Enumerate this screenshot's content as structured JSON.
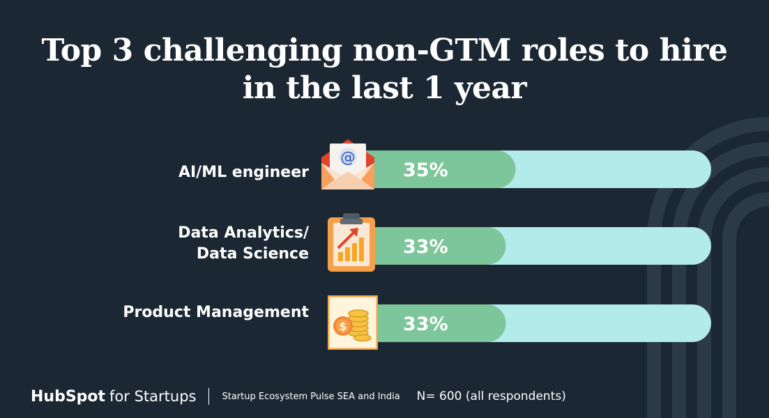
{
  "title": {
    "line1": "Top 3 challenging non-GTM roles to hire",
    "line2": "in the last 1 year"
  },
  "chart_data": {
    "type": "bar",
    "orientation": "horizontal",
    "title": "Top 3 challenging non-GTM roles to hire in the last 1 year",
    "categories": [
      "AI/ML engineer",
      "Data Analytics/ Data Science",
      "Product Management"
    ],
    "category_lines": [
      [
        "AI/ML engineer"
      ],
      [
        "Data Analytics/",
        "Data Science"
      ],
      [
        "Product Management"
      ]
    ],
    "values": [
      35,
      33,
      33
    ],
    "value_labels": [
      "35%",
      "33%",
      "33%"
    ],
    "unit": "%",
    "xlim": [
      0,
      75
    ],
    "colors": {
      "fill": "#7dc59a",
      "track": "#b3eaea",
      "label": "#ffffff"
    }
  },
  "icons": [
    "email-envelope-icon",
    "clipboard-growth-chart-icon",
    "money-coins-icon"
  ],
  "footer": {
    "brand_hub": "HubSpot",
    "brand_rest": "for Startups",
    "survey": "Startup Ecosystem Pulse SEA and India",
    "sample": "N= 600 (all respondents)"
  },
  "colors": {
    "background": "#1b2733",
    "accent_orange": "#f26b3a"
  }
}
